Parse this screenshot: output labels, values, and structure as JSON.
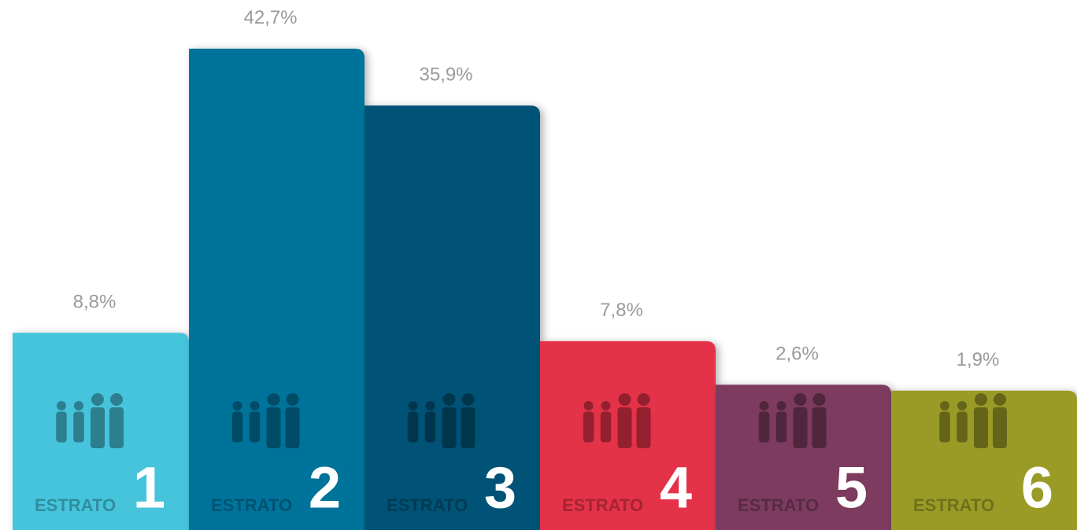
{
  "chart_data": {
    "type": "bar",
    "category_prefix": "ESTRATO",
    "categories": [
      "1",
      "2",
      "3",
      "4",
      "5",
      "6"
    ],
    "values": [
      8.8,
      42.7,
      35.9,
      7.8,
      2.6,
      1.9
    ],
    "value_labels": [
      "8,8%",
      "42,7%",
      "35,9%",
      "7,8%",
      "2,6%",
      "1,9%"
    ],
    "colors": [
      "#45c4dc",
      "#00739b",
      "#005276",
      "#e4314a",
      "#7c3a5e",
      "#9a9b28"
    ]
  }
}
